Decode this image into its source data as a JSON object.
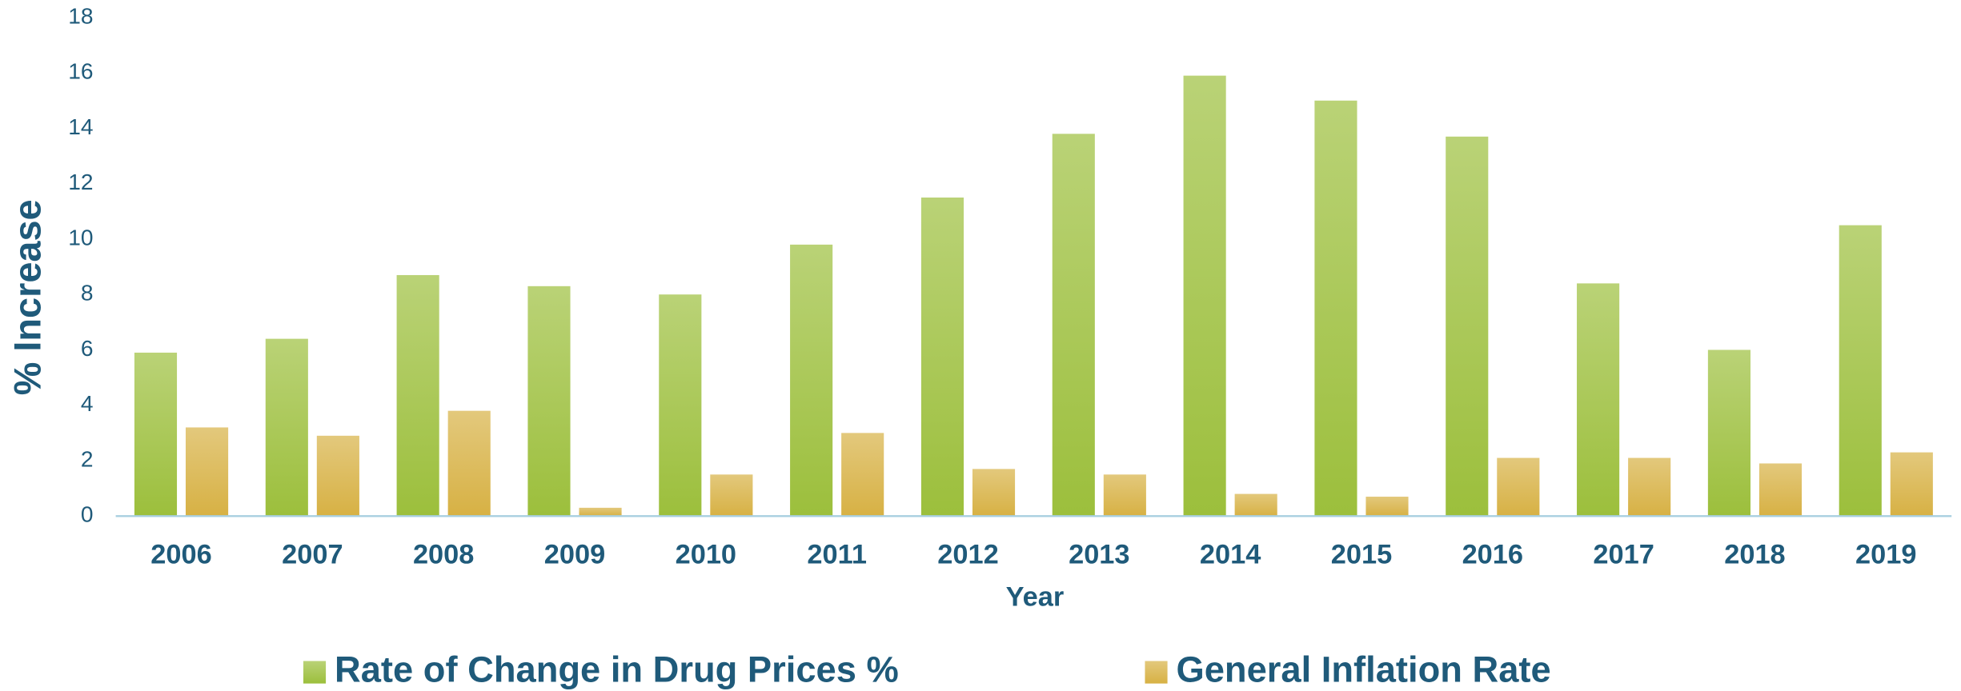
{
  "chart_data": {
    "type": "bar",
    "x_label": "Year",
    "y_label": "% Increase",
    "categories": [
      "2006",
      "2007",
      "2008",
      "2009",
      "2010",
      "2011",
      "2012",
      "2013",
      "2014",
      "2015",
      "2016",
      "2017",
      "2018",
      "2019"
    ],
    "series": [
      {
        "name": "Rate of Change in Drug Prices %",
        "color": "#9cbf3c",
        "values": [
          5.9,
          6.4,
          8.7,
          8.3,
          8.0,
          9.8,
          11.5,
          13.8,
          15.9,
          15.0,
          13.7,
          8.4,
          6.0,
          10.5
        ]
      },
      {
        "name": "General Inflation Rate",
        "color": "#d7b144",
        "values": [
          3.2,
          2.9,
          3.8,
          0.3,
          1.5,
          3.0,
          1.7,
          1.5,
          0.8,
          0.7,
          2.1,
          2.1,
          1.9,
          2.3
        ]
      }
    ],
    "ylim": [
      0,
      18
    ],
    "yticks": [
      0,
      2,
      4,
      6,
      8,
      10,
      12,
      14,
      16,
      18
    ],
    "grid": false,
    "legend": "bottom"
  }
}
